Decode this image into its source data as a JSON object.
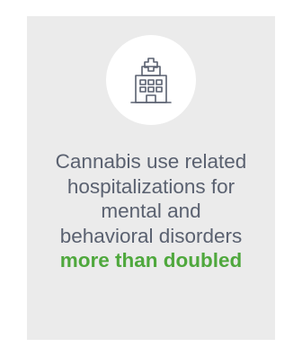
{
  "card": {
    "icon": "hospital-icon",
    "lines": [
      "Cannabis use related",
      "hospitalizations for",
      "mental and",
      "behavioral disorders"
    ],
    "emphasis": "more than doubled"
  },
  "colors": {
    "card_background": "#ebebeb",
    "text": "#5a6170",
    "emphasis": "#4fa83d",
    "icon_stroke": "#5a6170"
  }
}
